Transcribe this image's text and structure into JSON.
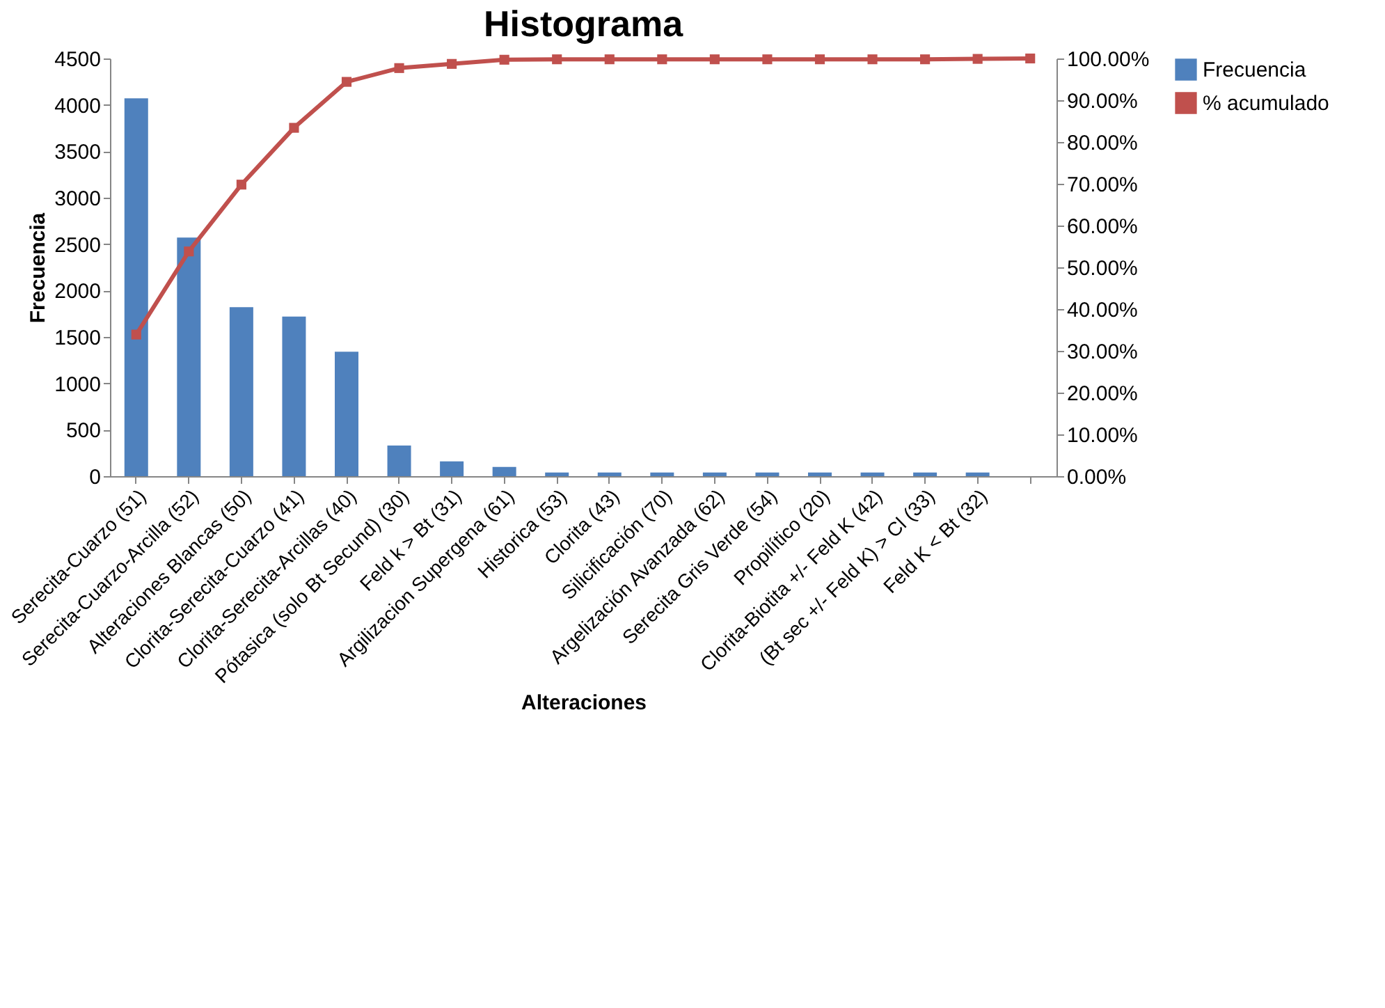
{
  "chart_data": {
    "type": "bar",
    "title": "Histograma",
    "xlabel": "Alteraciones",
    "ylabel": "Frecuencia",
    "categories": [
      "Serecita-Cuarzo (51)",
      "Serecita-Cuarzo-Arcilla (52)",
      "Alteraciones Blancas (50)",
      "Clorita-Serecita-Cuarzo (41)",
      "Clorita-Serecita-Arcillas (40)",
      "Pótasica (solo Bt Secund) (30)",
      "Feld k > Bt (31)",
      "Argilizacion Supergena (61)",
      "Historica (53)",
      "Clorita (43)",
      "Silicificación (70)",
      "Argelización Avanzada (62)",
      "Serecita Gris Verde (54)",
      "Propilítico (20)",
      "Clorita-Biotita +/- Feld K (42)",
      "(Bt sec +/- Feld K) > Cl (33)",
      "Feld K < Bt (32)",
      null
    ],
    "series": [
      {
        "name": "Frecuencia",
        "color": "#4f81bd",
        "values": [
          4070,
          2570,
          1820,
          1720,
          1340,
          330,
          160,
          100,
          40,
          40,
          40,
          40,
          40,
          40,
          40,
          40,
          40,
          null
        ]
      },
      {
        "name": "% acumulado",
        "type": "line",
        "axis": "y2",
        "color": "#c0504d",
        "marker": "square",
        "line_style": "solid",
        "values": [
          33.9,
          53.8,
          69.8,
          83.4,
          94.4,
          97.7,
          98.7,
          99.7,
          99.8,
          99.8,
          99.8,
          99.8,
          99.8,
          99.8,
          99.8,
          99.8,
          99.9,
          100
        ]
      }
    ],
    "ylim": [
      0,
      4500
    ],
    "yticks": [
      0,
      500,
      1000,
      1500,
      2000,
      2500,
      3000,
      3500,
      4000,
      4500
    ],
    "y2lim": [
      0,
      100
    ],
    "y2ticks": [
      {
        "value": 0,
        "label": "0.00%"
      },
      {
        "value": 10,
        "label": "10.00%"
      },
      {
        "value": 20,
        "label": "20.00%"
      },
      {
        "value": 30,
        "label": "30.00%"
      },
      {
        "value": 40,
        "label": "40.00%"
      },
      {
        "value": 50,
        "label": "50.00%"
      },
      {
        "value": 60,
        "label": "60.00%"
      },
      {
        "value": 70,
        "label": "70.00%"
      },
      {
        "value": 80,
        "label": "80.00%"
      },
      {
        "value": 90,
        "label": "90.00%"
      },
      {
        "value": 100,
        "label": "100.00%"
      }
    ],
    "grid": false,
    "legend": "right"
  }
}
